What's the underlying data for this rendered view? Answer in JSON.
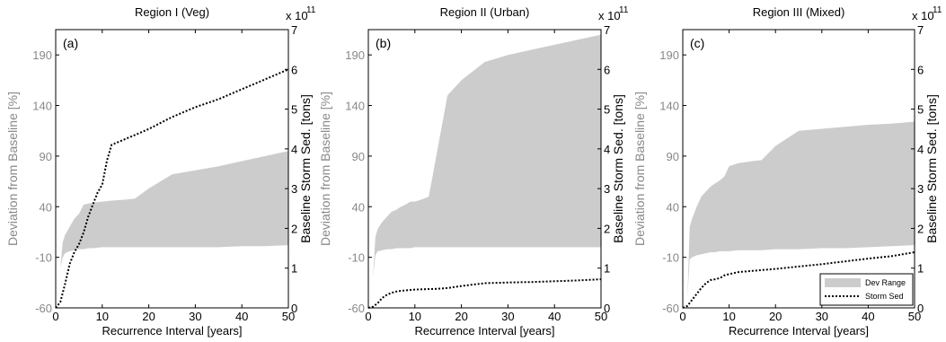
{
  "chart_data": [
    {
      "type": "area",
      "panel_label": "(a)",
      "title": "Region I (Veg)",
      "xlabel": "Recurrence Interval [years]",
      "ylabel_left": "Deviation from Baseline [%]",
      "ylabel_right": "Baseline Storm Sed. [tons]",
      "right_exponent": "x 10",
      "right_exponent_power": "11",
      "xlim": [
        0,
        50
      ],
      "ylim_left": [
        -60,
        215
      ],
      "ylim_right": [
        0,
        7
      ],
      "x_ticks": [
        0,
        10,
        20,
        30,
        40,
        50
      ],
      "y_ticks_left": [
        -60,
        -10,
        40,
        90,
        140,
        190
      ],
      "y_ticks_right": [
        0,
        1,
        2,
        3,
        4,
        5,
        6,
        7
      ],
      "grid": false,
      "dev_range": {
        "x": [
          1,
          1.5,
          2,
          3,
          4,
          5,
          6,
          7,
          8,
          10,
          12,
          15,
          17,
          20,
          25,
          30,
          35,
          40,
          45,
          50
        ],
        "upper": [
          -20,
          5,
          12,
          20,
          28,
          33,
          42,
          43,
          44,
          45,
          46,
          47,
          48,
          58,
          72,
          76,
          80,
          85,
          90,
          95
        ],
        "lower": [
          -20,
          -10,
          -6,
          -4,
          -3,
          -2,
          -2,
          -1,
          -1,
          0,
          0,
          0,
          0,
          0,
          0,
          0,
          0,
          1,
          1,
          2
        ]
      },
      "storm_sed": {
        "x": [
          0,
          1,
          2,
          3,
          4,
          5,
          6,
          7,
          8,
          9,
          10,
          11,
          12,
          15,
          17,
          20,
          25,
          30,
          35,
          40,
          45,
          50
        ],
        "y": [
          0,
          0.15,
          0.6,
          1.1,
          1.4,
          1.6,
          1.9,
          2.3,
          2.6,
          2.9,
          3.1,
          3.7,
          4.1,
          4.25,
          4.35,
          4.5,
          4.8,
          5.05,
          5.25,
          5.5,
          5.75,
          6.0
        ]
      }
    },
    {
      "type": "area",
      "panel_label": "(b)",
      "title": "Region II (Urban)",
      "xlabel": "Recurrence Interval [years]",
      "ylabel_left": "Deviation from Baseline [%]",
      "ylabel_right": "Baseline Storm Sed. [tons]",
      "right_exponent": "x 10",
      "right_exponent_power": "11",
      "xlim": [
        0,
        50
      ],
      "ylim_left": [
        -60,
        215
      ],
      "ylim_right": [
        0,
        7
      ],
      "x_ticks": [
        0,
        10,
        20,
        30,
        40,
        50
      ],
      "y_ticks_left": [
        -60,
        -10,
        40,
        90,
        140,
        190
      ],
      "y_ticks_right": [
        0,
        1,
        2,
        3,
        4,
        5,
        6,
        7
      ],
      "grid": false,
      "dev_range": {
        "x": [
          1,
          1.5,
          2,
          3,
          4,
          5,
          6,
          7,
          8,
          9,
          10,
          12,
          13,
          15,
          17,
          20,
          25,
          30,
          35,
          40,
          45,
          50
        ],
        "upper": [
          -30,
          10,
          18,
          25,
          30,
          35,
          37,
          40,
          42,
          45,
          45,
          48,
          50,
          100,
          150,
          165,
          183,
          190,
          195,
          200,
          205,
          210
        ],
        "lower": [
          -30,
          -8,
          -4,
          -3,
          -2,
          -2,
          -1,
          -1,
          -1,
          -1,
          0,
          0,
          0,
          0,
          0,
          0,
          0,
          0,
          0,
          0,
          0,
          0
        ]
      },
      "storm_sed": {
        "x": [
          0,
          1,
          2,
          3,
          4,
          5,
          6,
          7,
          8,
          10,
          12,
          15,
          17,
          20,
          25,
          30,
          35,
          40,
          45,
          50
        ],
        "y": [
          0,
          0.03,
          0.12,
          0.25,
          0.33,
          0.38,
          0.41,
          0.43,
          0.44,
          0.46,
          0.47,
          0.48,
          0.5,
          0.55,
          0.62,
          0.64,
          0.65,
          0.67,
          0.69,
          0.72
        ]
      }
    },
    {
      "type": "area",
      "panel_label": "(c)",
      "title": "Region III (Mixed)",
      "xlabel": "Recurrence Interval [years]",
      "ylabel_left": "Deviation from Baseline [%]",
      "ylabel_right": "Baseline Storm Sed. [tons]",
      "right_exponent": "x 10",
      "right_exponent_power": "11",
      "xlim": [
        0,
        50
      ],
      "ylim_left": [
        -60,
        215
      ],
      "ylim_right": [
        0,
        7
      ],
      "x_ticks": [
        0,
        10,
        20,
        30,
        40,
        50
      ],
      "y_ticks_left": [
        -60,
        -10,
        40,
        90,
        140,
        190
      ],
      "y_ticks_right": [
        0,
        1,
        2,
        3,
        4,
        5,
        6,
        7
      ],
      "grid": false,
      "legend": {
        "placement": "bottom-right",
        "entries": [
          {
            "label": "Dev Range",
            "style": "fill",
            "color": "#cccccc"
          },
          {
            "label": "Storm Sed",
            "style": "dotted-line",
            "color": "#000000"
          }
        ]
      },
      "dev_range": {
        "x": [
          1,
          1.5,
          2,
          3,
          4,
          5,
          6,
          7,
          8,
          9,
          10,
          12,
          15,
          17,
          20,
          25,
          30,
          35,
          40,
          45,
          50
        ],
        "upper": [
          -50,
          20,
          28,
          40,
          50,
          55,
          60,
          63,
          66,
          70,
          80,
          83,
          85,
          86,
          100,
          115,
          117,
          119,
          121,
          122,
          124
        ],
        "lower": [
          -50,
          -12,
          -10,
          -8,
          -7,
          -6,
          -5,
          -5,
          -4,
          -4,
          -4,
          -3,
          -3,
          -3,
          -2,
          -2,
          -1,
          -1,
          0,
          1,
          2
        ]
      },
      "storm_sed": {
        "x": [
          0,
          1,
          2,
          3,
          4,
          5,
          6,
          7,
          8,
          9,
          10,
          12,
          15,
          17,
          20,
          25,
          30,
          35,
          40,
          45,
          50
        ],
        "y": [
          0,
          0.05,
          0.2,
          0.35,
          0.5,
          0.62,
          0.7,
          0.72,
          0.75,
          0.82,
          0.85,
          0.9,
          0.93,
          0.95,
          0.98,
          1.04,
          1.1,
          1.17,
          1.24,
          1.3,
          1.4
        ]
      }
    }
  ],
  "colors": {
    "dev_range_fill": "#cccccc",
    "left_axis_text": "#888888",
    "storm_sed_line": "#000000"
  }
}
